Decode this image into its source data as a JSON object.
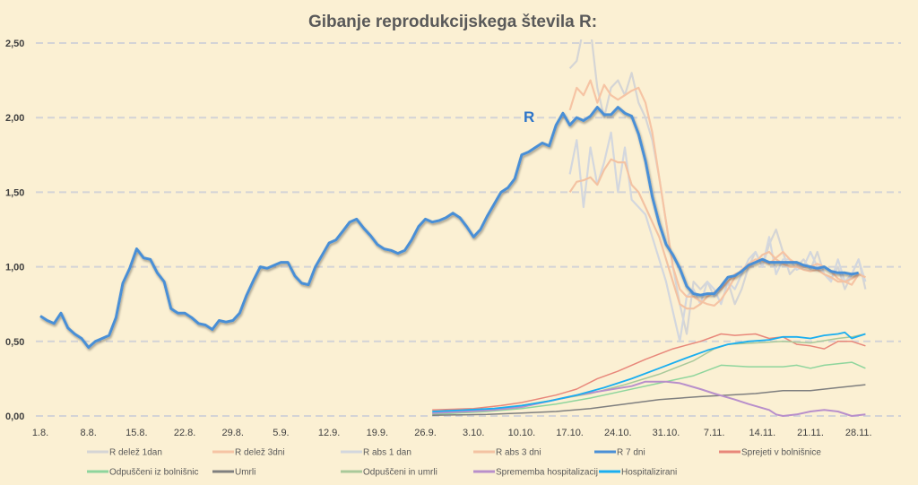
{
  "chart_data": {
    "type": "line",
    "title": "Gibanje reprodukcijskega števila R:",
    "annotation": "R",
    "xlabel": "",
    "ylabel": "",
    "ylim": [
      0,
      2.5
    ],
    "yticks": [
      "0,00",
      "0,50",
      "1,00",
      "1,50",
      "2,00",
      "2,50"
    ],
    "ytick_values": [
      0,
      0.5,
      1,
      1.5,
      2,
      2.5
    ],
    "xlim_days": [
      0,
      120
    ],
    "xtick_labels": [
      "1.8.",
      "8.8.",
      "15.8.",
      "22.8.",
      "29.8.",
      "5.9.",
      "12.9.",
      "19.9.",
      "26.9.",
      "3.10.",
      "10.10.",
      "17.10.",
      "24.10.",
      "31.10.",
      "7.11.",
      "14.11.",
      "21.11.",
      "28.11."
    ],
    "xtick_days": [
      0,
      7,
      14,
      21,
      28,
      35,
      42,
      49,
      56,
      63,
      70,
      77,
      84,
      91,
      98,
      105,
      112,
      119
    ],
    "grid": true,
    "legend_position": "bottom",
    "series": [
      {
        "name": "R delež 1dan",
        "color": "#d5d5d5",
        "start_day": 77,
        "width": 2.2,
        "values": [
          2.33,
          2.38,
          2.6,
          2.6,
          2.2,
          2.0,
          2.2,
          2.25,
          2.15,
          2.3,
          2.1,
          2.0,
          1.85,
          1.6,
          1.3,
          1.0,
          0.75,
          0.55,
          0.9,
          0.85,
          0.9,
          0.8,
          0.85,
          0.9,
          0.75,
          0.85,
          1.0,
          1.1,
          1.0,
          1.15,
          1.25,
          1.1,
          0.95,
          1.0,
          1.05,
          0.98,
          1.1,
          0.95,
          0.92,
          1.0,
          0.85,
          0.95,
          1.05,
          0.85
        ]
      },
      {
        "name": "R delež 3dni",
        "color": "#f6c4a4",
        "start_day": 77,
        "width": 2.2,
        "values": [
          2.05,
          2.2,
          2.15,
          2.25,
          2.1,
          2.22,
          2.15,
          2.12,
          2.15,
          2.18,
          2.2,
          2.1,
          1.9,
          1.6,
          1.3,
          1.0,
          0.85,
          0.8,
          0.8,
          0.77,
          0.75,
          0.74,
          0.78,
          0.85,
          0.93,
          0.98,
          1.02,
          1.05,
          1.04,
          1.02,
          1.06,
          1.1,
          1.05,
          1.02,
          1.0,
          1.0,
          1.02,
          1.0,
          0.97,
          0.92,
          0.9,
          0.88,
          0.95,
          0.93
        ]
      },
      {
        "name": "R abs 1 dan",
        "color": "#d3d7de",
        "start_day": 77,
        "width": 2.2,
        "values": [
          1.62,
          1.85,
          1.4,
          1.8,
          1.55,
          1.7,
          1.9,
          1.5,
          1.8,
          1.45,
          1.4,
          1.35,
          1.2,
          1.05,
          0.9,
          0.7,
          0.5,
          0.8,
          0.85,
          0.75,
          0.9,
          0.85,
          0.75,
          0.9,
          0.85,
          0.95,
          1.05,
          1.1,
          1.0,
          1.2,
          0.95,
          1.05,
          1.05,
          0.98,
          1.0,
          1.1,
          1.0,
          0.95,
          0.9,
          1.05,
          0.9,
          0.95,
          1.05,
          0.9
        ]
      },
      {
        "name": "R abs 3 dni",
        "color": "#f3c2a2",
        "start_day": 77,
        "width": 2.2,
        "values": [
          1.5,
          1.57,
          1.58,
          1.6,
          1.55,
          1.65,
          1.72,
          1.7,
          1.7,
          1.55,
          1.5,
          1.4,
          1.3,
          1.2,
          1.05,
          0.9,
          0.75,
          0.72,
          0.72,
          0.75,
          0.8,
          0.83,
          0.85,
          0.9,
          0.95,
          0.97,
          1.0,
          1.03,
          1.08,
          1.1,
          1.05,
          1.02,
          1.0,
          1.0,
          0.98,
          0.97,
          0.98,
          0.95,
          0.93,
          0.9,
          0.9,
          0.92,
          0.95,
          0.93
        ]
      },
      {
        "name": "R 7 dni",
        "color": "#4a8fd6",
        "start_day": 0,
        "width": 3,
        "values": [
          0.67,
          0.64,
          0.62,
          0.69,
          0.59,
          0.55,
          0.52,
          0.46,
          0.5,
          0.52,
          0.54,
          0.66,
          0.89,
          0.99,
          1.12,
          1.06,
          1.05,
          0.96,
          0.9,
          0.72,
          0.69,
          0.69,
          0.66,
          0.62,
          0.61,
          0.58,
          0.64,
          0.63,
          0.64,
          0.69,
          0.81,
          0.91,
          1.0,
          0.99,
          1.01,
          1.03,
          1.03,
          0.94,
          0.89,
          0.88,
          1.0,
          1.08,
          1.16,
          1.18,
          1.24,
          1.3,
          1.32,
          1.26,
          1.21,
          1.15,
          1.12,
          1.11,
          1.09,
          1.11,
          1.18,
          1.27,
          1.32,
          1.3,
          1.31,
          1.33,
          1.36,
          1.33,
          1.27,
          1.2,
          1.25,
          1.34,
          1.42,
          1.5,
          1.53,
          1.59,
          1.75,
          1.77,
          1.8,
          1.83,
          1.81,
          1.95,
          2.03,
          1.95,
          2.0,
          1.98,
          2.01,
          2.07,
          2.02,
          2.02,
          2.07,
          2.03,
          2.01,
          1.89,
          1.71,
          1.47,
          1.29,
          1.15,
          1.08,
          0.99,
          0.87,
          0.82,
          0.81,
          0.82,
          0.82,
          0.87,
          0.93,
          0.94,
          0.97,
          1.01,
          1.03,
          1.05,
          1.03,
          1.03,
          1.03,
          1.03,
          1.03,
          1.01,
          1.0,
          0.99,
          1.0,
          0.97,
          0.96,
          0.96,
          0.95,
          0.96
        ]
      },
      {
        "name": "Sprejeti v bolnišnice",
        "color": "#e8877a",
        "width": 1.5,
        "points": [
          [
            57,
            0.04
          ],
          [
            63,
            0.05
          ],
          [
            67,
            0.07
          ],
          [
            70,
            0.09
          ],
          [
            75,
            0.14
          ],
          [
            78,
            0.18
          ],
          [
            81,
            0.25
          ],
          [
            84,
            0.3
          ],
          [
            88,
            0.38
          ],
          [
            92,
            0.45
          ],
          [
            96,
            0.5
          ],
          [
            99,
            0.55
          ],
          [
            101,
            0.54
          ],
          [
            104,
            0.55
          ],
          [
            106,
            0.52
          ],
          [
            108,
            0.53
          ],
          [
            110,
            0.48
          ],
          [
            112,
            0.47
          ],
          [
            114,
            0.45
          ],
          [
            116,
            0.5
          ],
          [
            118,
            0.5
          ],
          [
            120,
            0.47
          ]
        ]
      },
      {
        "name": "Odpuščeni iz bolnišnic",
        "color": "#8ed59c",
        "width": 1.5,
        "points": [
          [
            57,
            0.01
          ],
          [
            65,
            0.03
          ],
          [
            70,
            0.05
          ],
          [
            75,
            0.08
          ],
          [
            80,
            0.12
          ],
          [
            85,
            0.17
          ],
          [
            90,
            0.22
          ],
          [
            95,
            0.27
          ],
          [
            99,
            0.34
          ],
          [
            103,
            0.33
          ],
          [
            106,
            0.33
          ],
          [
            108,
            0.33
          ],
          [
            110,
            0.34
          ],
          [
            112,
            0.32
          ],
          [
            114,
            0.34
          ],
          [
            116,
            0.35
          ],
          [
            118,
            0.36
          ],
          [
            120,
            0.32
          ]
        ]
      },
      {
        "name": "Umrli",
        "color": "#7f7f7f",
        "width": 1.5,
        "points": [
          [
            57,
            0.005
          ],
          [
            65,
            0.01
          ],
          [
            70,
            0.02
          ],
          [
            75,
            0.03
          ],
          [
            80,
            0.05
          ],
          [
            85,
            0.08
          ],
          [
            90,
            0.11
          ],
          [
            96,
            0.13
          ],
          [
            100,
            0.14
          ],
          [
            104,
            0.15
          ],
          [
            108,
            0.17
          ],
          [
            112,
            0.17
          ],
          [
            116,
            0.19
          ],
          [
            118,
            0.2
          ],
          [
            120,
            0.21
          ]
        ]
      },
      {
        "name": "Odpuščeni in umrli",
        "color": "#a9c99a",
        "width": 1.5,
        "points": [
          [
            57,
            0.02
          ],
          [
            65,
            0.04
          ],
          [
            70,
            0.07
          ],
          [
            75,
            0.11
          ],
          [
            80,
            0.15
          ],
          [
            85,
            0.21
          ],
          [
            90,
            0.28
          ],
          [
            95,
            0.37
          ],
          [
            98,
            0.45
          ],
          [
            100,
            0.48
          ],
          [
            104,
            0.49
          ],
          [
            108,
            0.5
          ],
          [
            112,
            0.49
          ],
          [
            116,
            0.52
          ],
          [
            118,
            0.53
          ],
          [
            120,
            0.55
          ]
        ]
      },
      {
        "name": "Sprememba hospitalizacij",
        "color": "#b88fcb",
        "width": 2,
        "points": [
          [
            57,
            0.02
          ],
          [
            62,
            0.03
          ],
          [
            66,
            0.04
          ],
          [
            70,
            0.06
          ],
          [
            74,
            0.1
          ],
          [
            78,
            0.14
          ],
          [
            82,
            0.17
          ],
          [
            86,
            0.2
          ],
          [
            88,
            0.23
          ],
          [
            91,
            0.23
          ],
          [
            93,
            0.22
          ],
          [
            96,
            0.18
          ],
          [
            98,
            0.15
          ],
          [
            101,
            0.11
          ],
          [
            103,
            0.08
          ],
          [
            106,
            0.04
          ],
          [
            107,
            0.01
          ],
          [
            108,
            0
          ],
          [
            110,
            0.01
          ],
          [
            112,
            0.03
          ],
          [
            114,
            0.04
          ],
          [
            116,
            0.03
          ],
          [
            118,
            0.0
          ],
          [
            120,
            0.01
          ]
        ]
      },
      {
        "name": "Hospitalizirani",
        "color": "#19aef0",
        "width": 1.8,
        "points": [
          [
            57,
            0.03
          ],
          [
            62,
            0.04
          ],
          [
            66,
            0.05
          ],
          [
            70,
            0.07
          ],
          [
            74,
            0.1
          ],
          [
            78,
            0.14
          ],
          [
            82,
            0.19
          ],
          [
            86,
            0.25
          ],
          [
            90,
            0.32
          ],
          [
            94,
            0.39
          ],
          [
            97,
            0.44
          ],
          [
            100,
            0.48
          ],
          [
            103,
            0.5
          ],
          [
            106,
            0.51
          ],
          [
            108,
            0.53
          ],
          [
            110,
            0.53
          ],
          [
            112,
            0.52
          ],
          [
            114,
            0.54
          ],
          [
            116,
            0.55
          ],
          [
            117,
            0.56
          ],
          [
            118,
            0.52
          ],
          [
            120,
            0.55
          ]
        ]
      }
    ]
  }
}
